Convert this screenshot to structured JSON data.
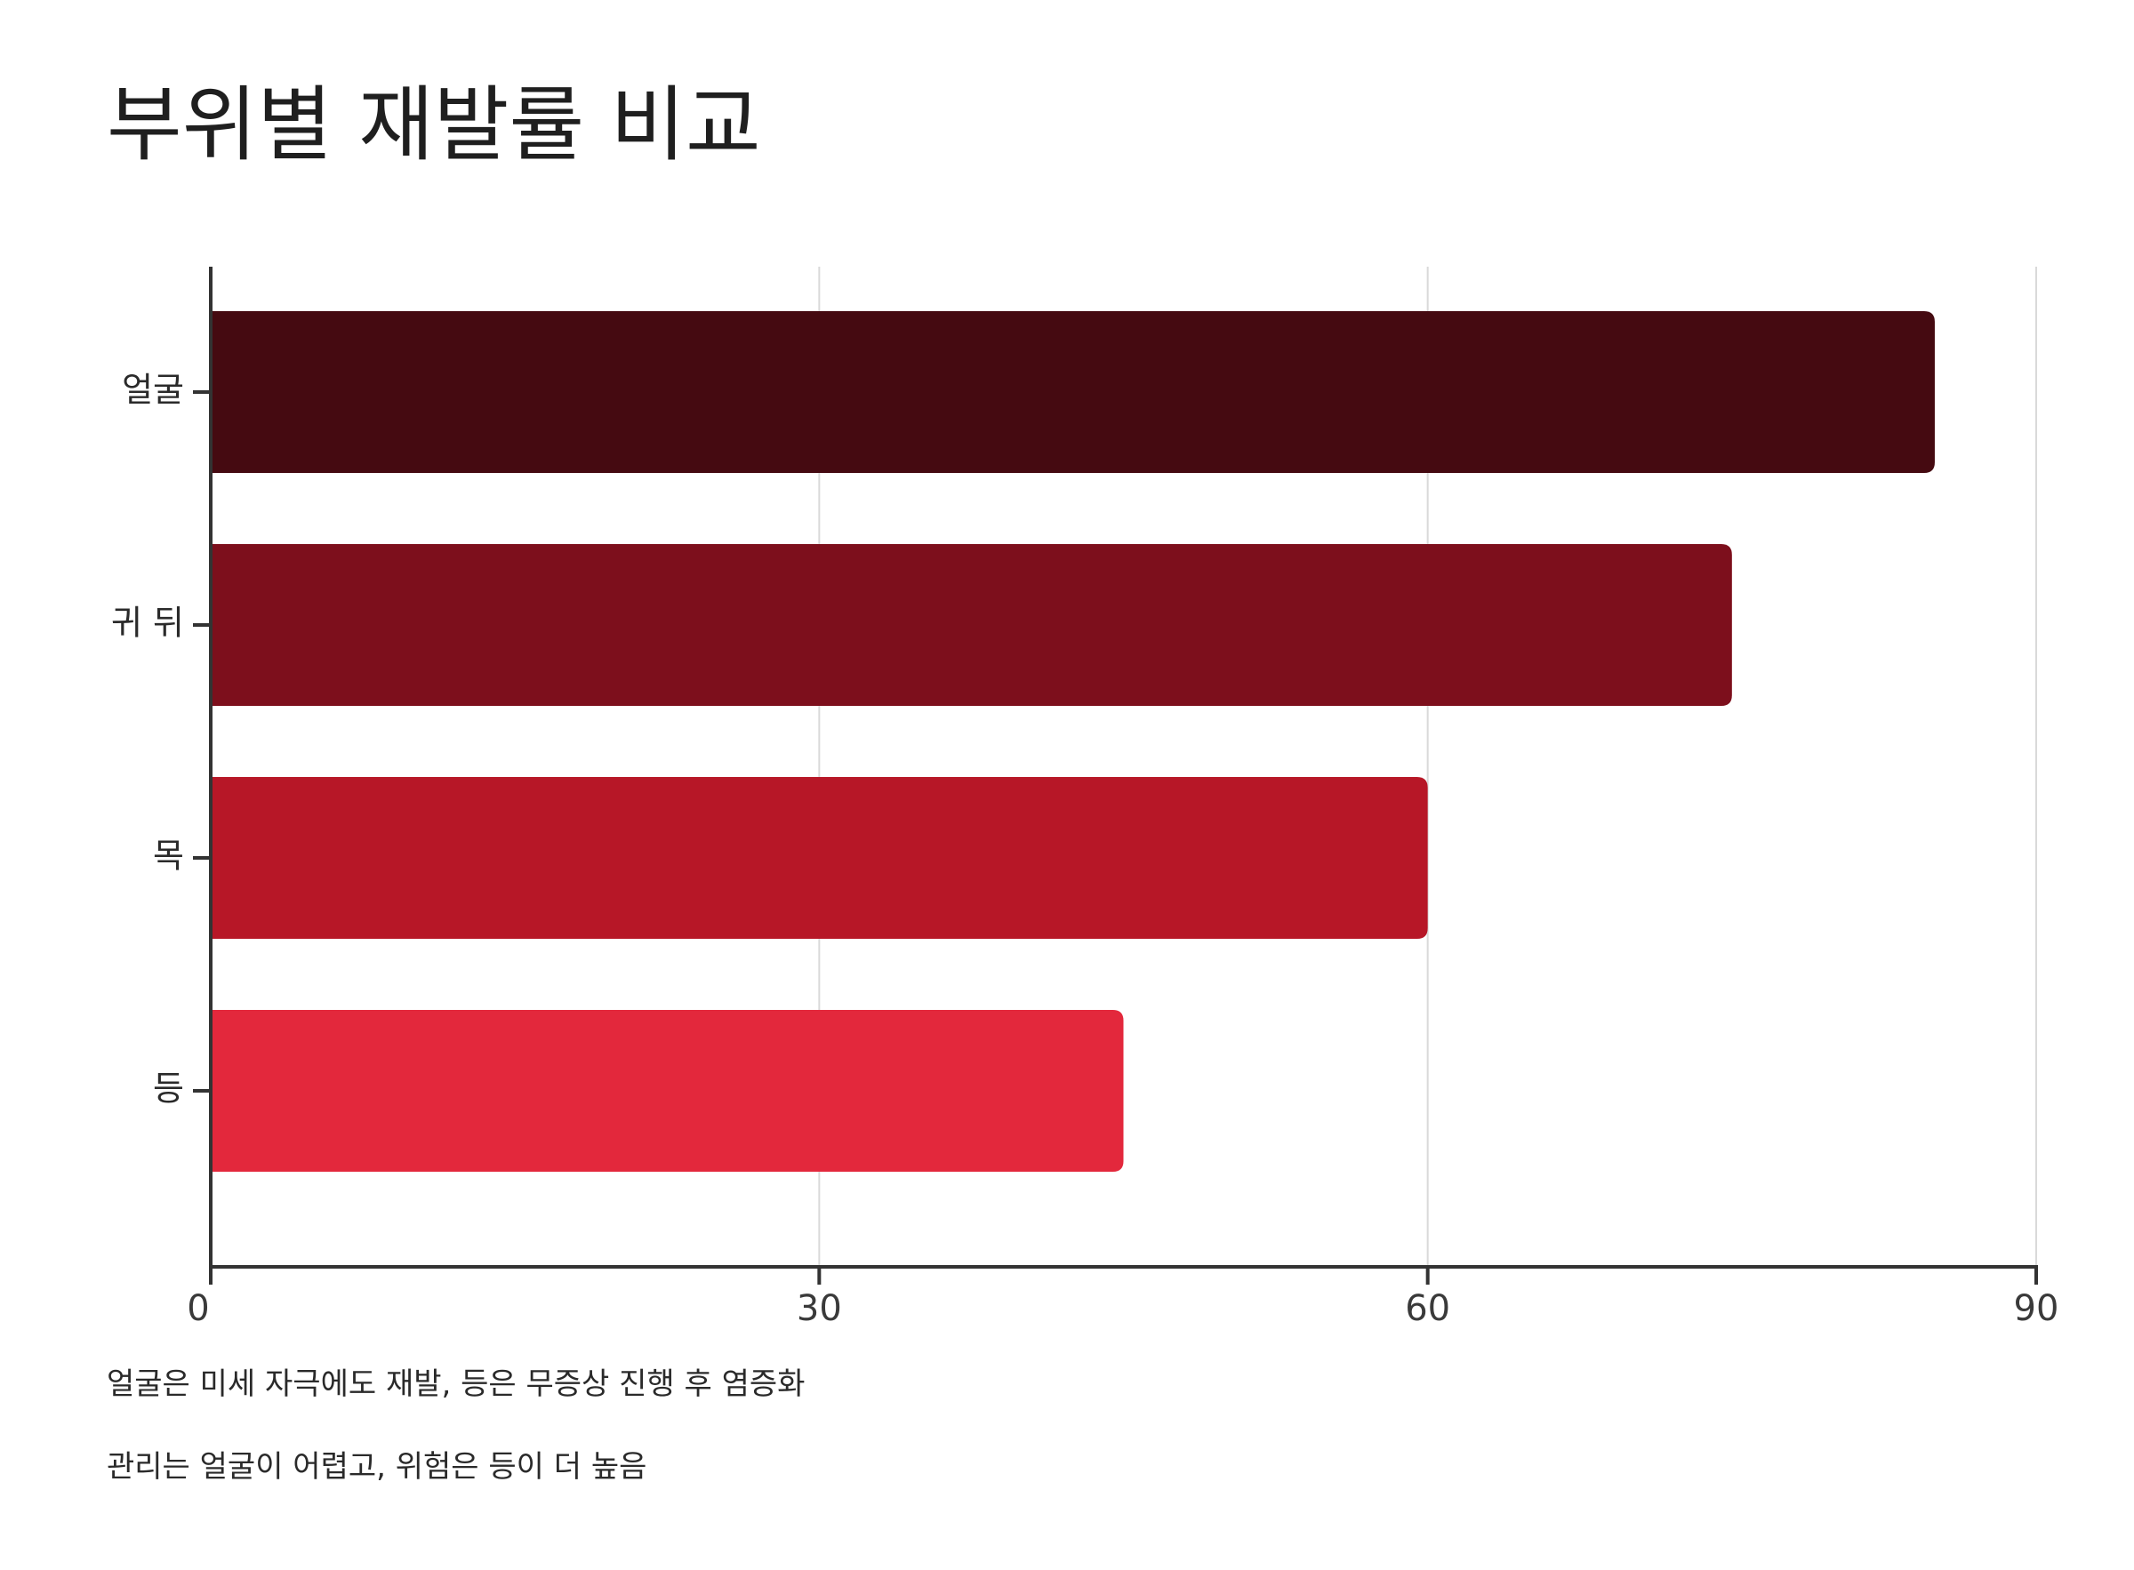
{
  "chart_data": {
    "type": "bar",
    "orientation": "horizontal",
    "title": "부위별 재발률 비교",
    "categories": [
      "얼굴",
      "귀 뒤",
      "목",
      "등"
    ],
    "values": [
      85,
      75,
      60,
      45
    ],
    "colors": [
      "#450a11",
      "#7d0f1c",
      "#b71727",
      "#e3283c"
    ],
    "xlim": [
      0,
      90
    ],
    "xticks": [
      0,
      30,
      60,
      90
    ],
    "xlabel": "",
    "ylabel": "",
    "grid": "vertical",
    "legend": "none"
  },
  "notes": [
    "얼굴은 미세 자극에도 재발, 등은 무증상 진행 후 염증화",
    "관리는 얼굴이 어렵고, 위험은 등이 더 높음"
  ],
  "colors": {
    "axis": "#333333",
    "grid": "#d9d9d9",
    "background": "#ffffff"
  }
}
